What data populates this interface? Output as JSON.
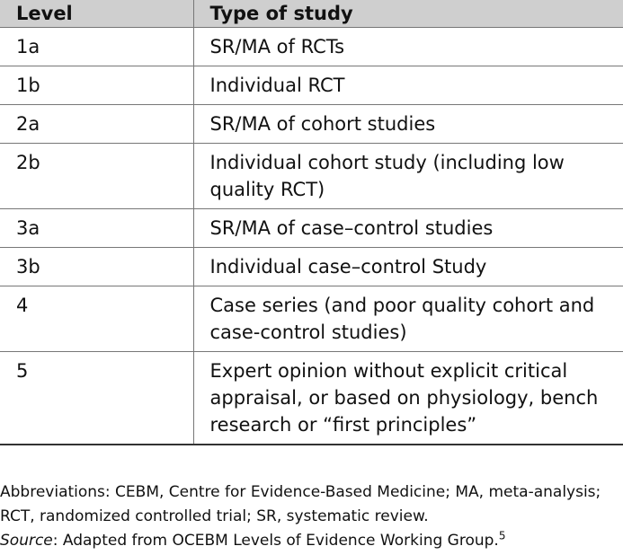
{
  "table": {
    "headers": [
      "Level",
      "Type of study"
    ],
    "rows": [
      {
        "level": "1a",
        "type": "SR/MA of RCTs"
      },
      {
        "level": "1b",
        "type": "Individual RCT"
      },
      {
        "level": "2a",
        "type": "SR/MA of cohort studies"
      },
      {
        "level": "2b",
        "type": "Individual cohort study (including low quality RCT)"
      },
      {
        "level": "3a",
        "type": "SR/MA of case–control studies"
      },
      {
        "level": "3b",
        "type": "Individual case–control Study"
      },
      {
        "level": "4",
        "type": "Case series (and poor quality cohort and case-control studies)"
      },
      {
        "level": "5",
        "type": "Expert opinion without explicit critical appraisal, or based on physiology, bench research or “first principles”"
      }
    ]
  },
  "footnotes": {
    "abbreviations": "Abbreviations: CEBM, Centre for Evidence-Based Medicine; MA, meta-analysis; RCT, randomized controlled trial; SR, systematic review.",
    "source_label": "Source",
    "source_text": ": Adapted from OCEBM Levels of Evidence Working Group.",
    "source_ref": "5"
  }
}
